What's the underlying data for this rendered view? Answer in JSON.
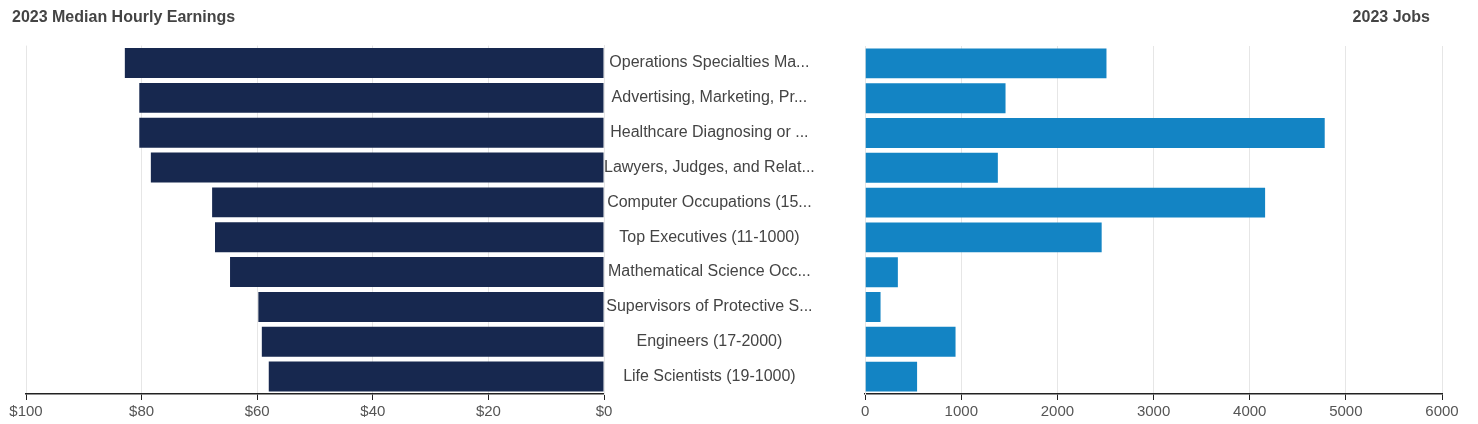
{
  "chart_data": [
    {
      "type": "bar",
      "orientation": "horizontal",
      "title": "2023 Median Hourly Earnings",
      "categories": [
        "Operations Specialties Ma...",
        "Advertising, Marketing, Pr...",
        "Healthcare Diagnosing or ...",
        "Lawyers, Judges, and Relat...",
        "Computer Occupations (15...",
        "Top Executives (11-1000)",
        "Mathematical Science Occ...",
        "Supervisors of Protective S...",
        "Engineers (17-2000)",
        "Life Scientists (19-1000)"
      ],
      "values": [
        82.9,
        80.4,
        80.4,
        78.4,
        67.8,
        67.3,
        64.7,
        59.8,
        59.2,
        58.0
      ],
      "color": "#17284f",
      "xlim": [
        100,
        0
      ],
      "xticks": [
        {
          "value": 100,
          "label": "$100"
        },
        {
          "value": 80,
          "label": "$80"
        },
        {
          "value": 60,
          "label": "$60"
        },
        {
          "value": 40,
          "label": "$40"
        },
        {
          "value": 20,
          "label": "$20"
        },
        {
          "value": 0,
          "label": "$0"
        }
      ],
      "grid": "x",
      "legend": false
    },
    {
      "type": "bar",
      "orientation": "horizontal",
      "title": "2023 Jobs",
      "categories": [
        null,
        null,
        null,
        null,
        null,
        null,
        null,
        null,
        null,
        null
      ],
      "values": [
        2510,
        1460,
        4780,
        1380,
        4160,
        2460,
        340,
        160,
        940,
        540
      ],
      "color": "#1384c4",
      "xlim": [
        0,
        6000
      ],
      "xticks": [
        0,
        1000,
        2000,
        3000,
        4000,
        5000,
        6000
      ],
      "grid": "x",
      "legend": false,
      "tick_labels": "x"
    }
  ]
}
